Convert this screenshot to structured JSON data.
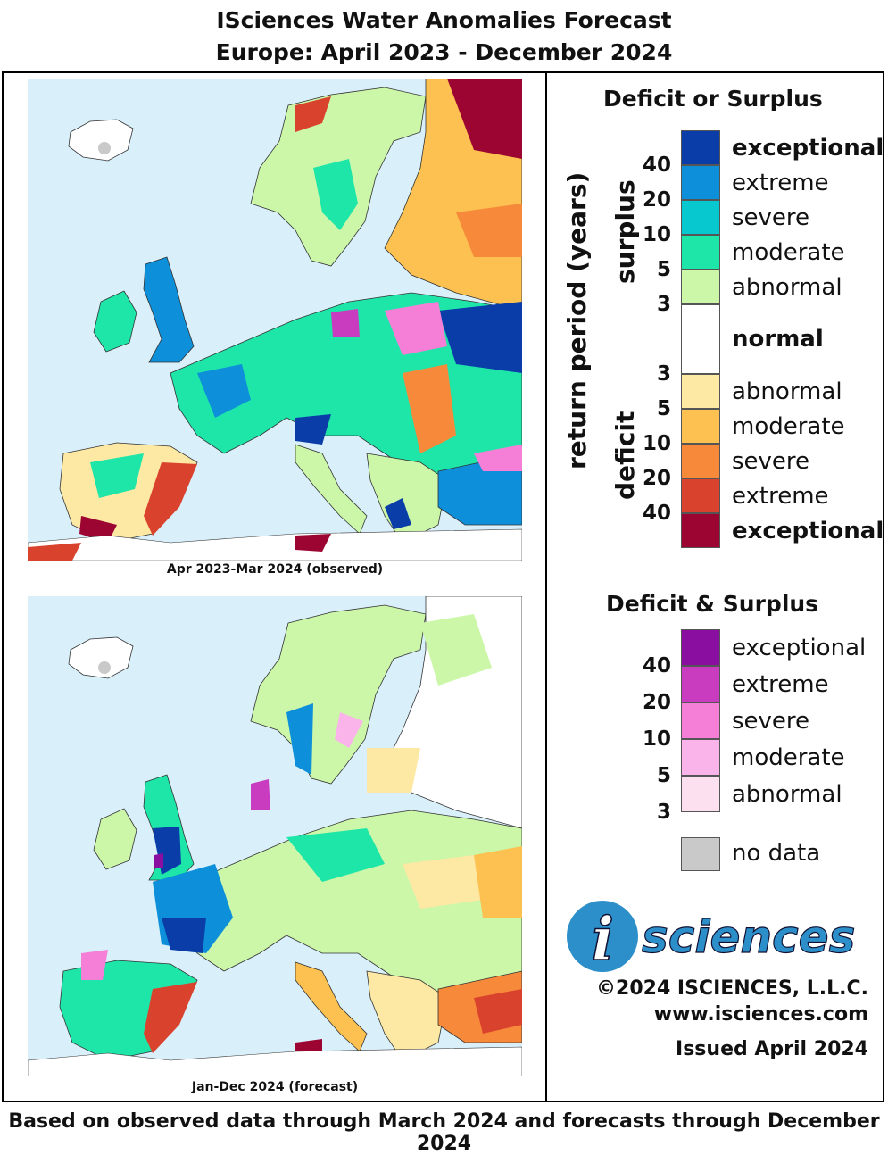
{
  "header": {
    "title": "ISciences Water Anomalies Forecast",
    "subtitle": "Europe: April 2023 - December 2024"
  },
  "maps": [
    {
      "caption": "Apr 2023-Mar 2024 (observed)"
    },
    {
      "caption": "Jan-Dec 2024 (forecast)"
    }
  ],
  "legend": {
    "axis_label": "return period (years)",
    "surplus_label": "surplus",
    "deficit_label": "deficit",
    "deficit_or_surplus": {
      "title": "Deficit or Surplus",
      "surplus": [
        {
          "label": "exceptional",
          "color": "#0a3da8"
        },
        {
          "label": "extreme",
          "color": "#0d8fd9"
        },
        {
          "label": "severe",
          "color": "#08c8cf"
        },
        {
          "label": "moderate",
          "color": "#1ee6a8"
        },
        {
          "label": "abnormal",
          "color": "#ccf6a8"
        }
      ],
      "normal": {
        "label": "normal",
        "color": "#ffffff"
      },
      "deficit": [
        {
          "label": "abnormal",
          "color": "#fde8a4"
        },
        {
          "label": "moderate",
          "color": "#fcc150"
        },
        {
          "label": "severe",
          "color": "#f7893a"
        },
        {
          "label": "extreme",
          "color": "#d9432e"
        },
        {
          "label": "exceptional",
          "color": "#9c0532"
        }
      ],
      "surplus_ticks": [
        "40",
        "20",
        "10",
        "5",
        "3"
      ],
      "deficit_ticks": [
        "3",
        "5",
        "10",
        "20",
        "40"
      ]
    },
    "deficit_and_surplus": {
      "title": "Deficit & Surplus",
      "items": [
        {
          "label": "exceptional",
          "color": "#8a0ea0"
        },
        {
          "label": "extreme",
          "color": "#c93cbf"
        },
        {
          "label": "severe",
          "color": "#f57fd6"
        },
        {
          "label": "moderate",
          "color": "#fab4ea"
        },
        {
          "label": "abnormal",
          "color": "#fde0f0"
        }
      ],
      "ticks": [
        "40",
        "20",
        "10",
        "5",
        "3"
      ]
    },
    "no_data": {
      "label": "no data",
      "color": "#c9c9c9"
    }
  },
  "logo": {
    "text": "sciences",
    "letter": "i"
  },
  "credits": {
    "copyright": "©2024 ISCIENCES, L.L.C.",
    "website": "www.isciences.com",
    "issued": "Issued April 2024"
  },
  "footer": "Based on observed data through March 2024 and forecasts through December 2024"
}
